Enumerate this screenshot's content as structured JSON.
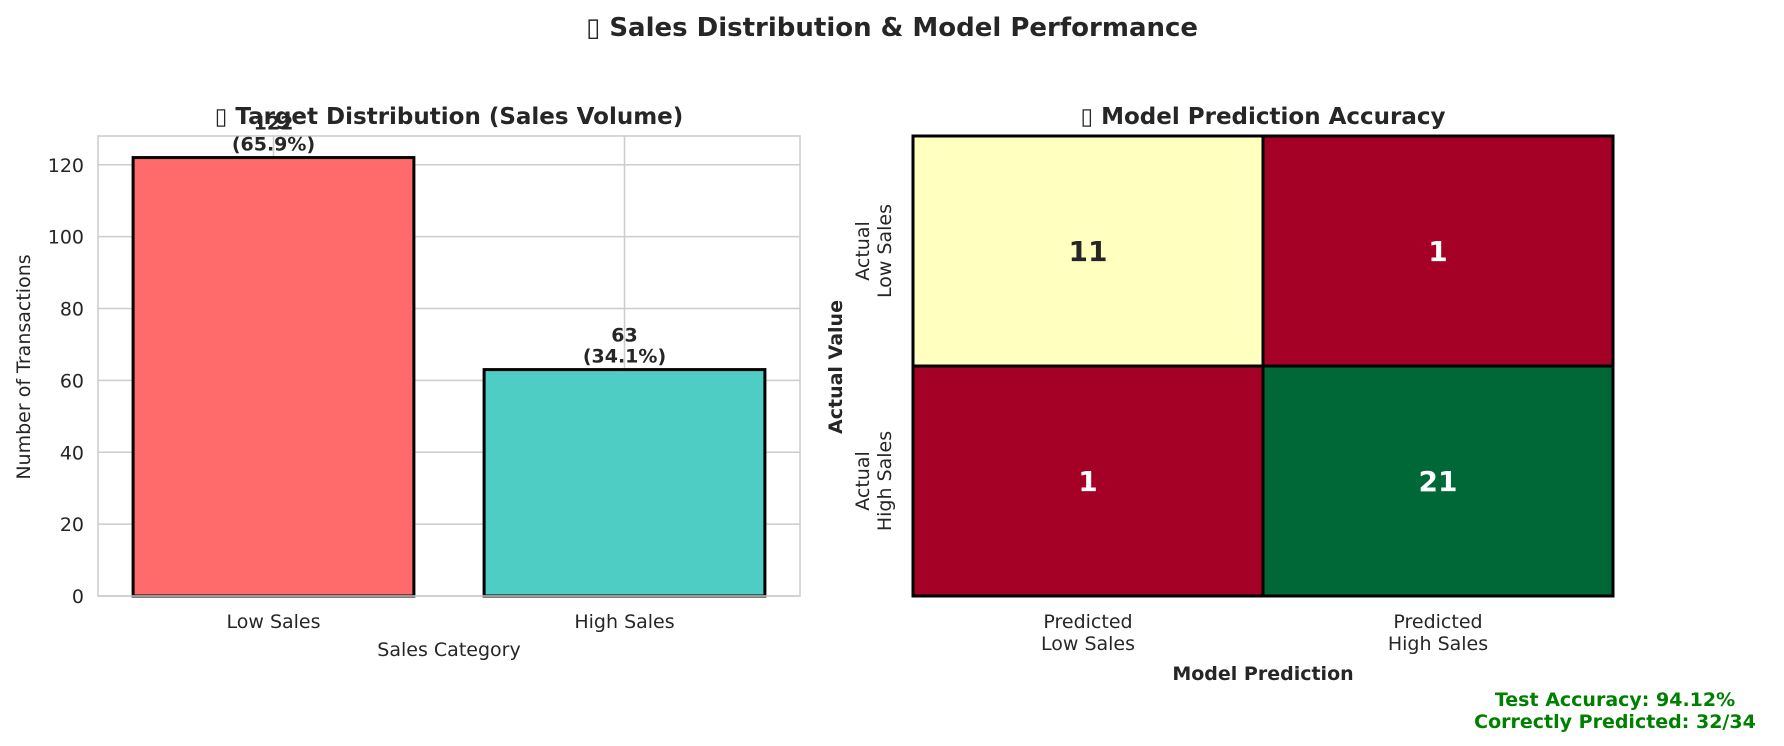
{
  "figure": {
    "title": "▯ Sales Distribution & Model Performance",
    "accuracy_text": "Test Accuracy: 94.12%",
    "correct_text": "Correctly Predicted: 32/34"
  },
  "chart_data": [
    {
      "type": "bar",
      "title": "▯ Target Distribution (Sales Volume)",
      "xlabel": "Sales Category",
      "ylabel": "Number of Transactions",
      "categories": [
        "Low Sales",
        "High Sales"
      ],
      "values": [
        122,
        63
      ],
      "percent_labels": [
        "(65.9%)",
        "(34.1%)"
      ],
      "ylim": [
        0,
        128
      ],
      "yticks": [
        0,
        20,
        40,
        60,
        80,
        100,
        120
      ],
      "colors": [
        "#ff6b6b",
        "#4ecdc4"
      ],
      "grid": true
    },
    {
      "type": "heatmap",
      "title": "▯ Model Prediction Accuracy",
      "xlabel": "Model Prediction",
      "ylabel": "Actual Value",
      "x_categories": [
        [
          "Predicted",
          "Low Sales"
        ],
        [
          "Predicted",
          "High Sales"
        ]
      ],
      "y_categories": [
        [
          "Actual",
          "Low Sales"
        ],
        [
          "Actual",
          "High Sales"
        ]
      ],
      "values": [
        [
          11,
          1
        ],
        [
          1,
          21
        ]
      ],
      "cell_colors": [
        [
          "#ffffbf",
          "#a50026"
        ],
        [
          "#a50026",
          "#006837"
        ]
      ],
      "text_colors": [
        [
          "#262626",
          "#ffffff"
        ],
        [
          "#ffffff",
          "#ffffff"
        ]
      ]
    }
  ],
  "colors": {
    "accent_green": "#008000",
    "text": "#262626",
    "grid": "#cccccc"
  }
}
